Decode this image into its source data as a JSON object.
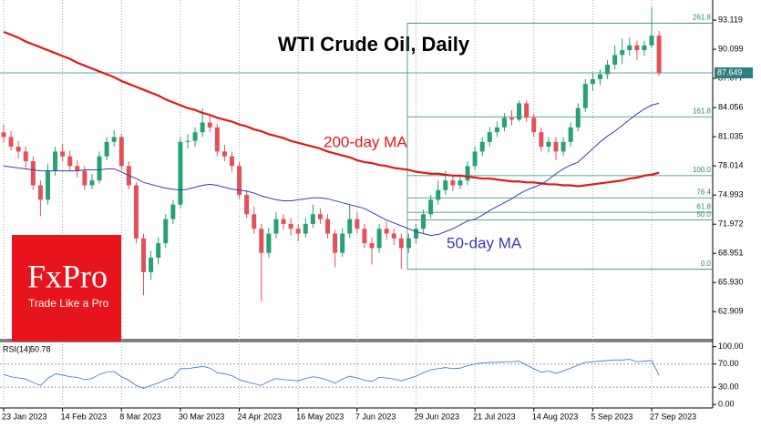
{
  "chart_data": {
    "type": "candlestick",
    "title": "WTI Crude Oil, Daily",
    "categories": [
      "23 Jan 2023",
      null,
      null,
      null,
      null,
      null,
      null,
      null,
      "14 Feb 2023",
      null,
      null,
      null,
      null,
      null,
      null,
      null,
      "8 Mar 2023",
      null,
      null,
      null,
      null,
      null,
      null,
      null,
      "30 Mar 2023",
      null,
      null,
      null,
      null,
      null,
      null,
      null,
      "24 Apr 2023",
      null,
      null,
      null,
      null,
      null,
      null,
      null,
      "16 May 2023",
      null,
      null,
      null,
      null,
      null,
      null,
      null,
      "7 Jun 2023",
      null,
      null,
      null,
      null,
      null,
      null,
      null,
      "29 Jun 2023",
      null,
      null,
      null,
      null,
      null,
      null,
      null,
      "21 Jul 2023",
      null,
      null,
      null,
      null,
      null,
      null,
      null,
      "14 Aug 2023",
      null,
      null,
      null,
      null,
      null,
      null,
      null,
      "5 Sep 2023",
      null,
      null,
      null,
      null,
      null,
      null,
      null,
      "27 Sep 2023",
      null
    ],
    "ohlc": [
      [
        81.5,
        82.3,
        80.4,
        81.0
      ],
      [
        81.0,
        81.6,
        79.6,
        80.0
      ],
      [
        80.0,
        80.6,
        78.8,
        79.5
      ],
      [
        79.5,
        80.0,
        77.8,
        78.5
      ],
      [
        78.5,
        79.0,
        75.5,
        76.0
      ],
      [
        76.0,
        76.5,
        72.8,
        74.5
      ],
      [
        74.5,
        78.2,
        74.0,
        77.5
      ],
      [
        77.5,
        80.0,
        77.0,
        79.5
      ],
      [
        79.5,
        80.3,
        78.5,
        79.0
      ],
      [
        79.0,
        79.6,
        77.4,
        78.0
      ],
      [
        78.0,
        78.6,
        76.8,
        77.5
      ],
      [
        77.5,
        78.0,
        75.5,
        76.0
      ],
      [
        76.0,
        77.2,
        75.6,
        76.5
      ],
      [
        76.5,
        79.5,
        76.2,
        79.0
      ],
      [
        79.0,
        81.0,
        78.6,
        80.5
      ],
      [
        80.5,
        81.7,
        80.0,
        81.0
      ],
      [
        81.0,
        81.3,
        77.6,
        78.0
      ],
      [
        78.0,
        78.5,
        75.6,
        76.0
      ],
      [
        76.0,
        76.3,
        70.0,
        70.5
      ],
      [
        70.5,
        71.0,
        64.6,
        67.0
      ],
      [
        67.0,
        69.2,
        66.2,
        68.5
      ],
      [
        68.5,
        70.6,
        67.8,
        70.0
      ],
      [
        70.0,
        73.0,
        69.5,
        72.5
      ],
      [
        72.5,
        74.5,
        72.0,
        74.0
      ],
      [
        74.0,
        81.0,
        73.6,
        80.5
      ],
      [
        80.5,
        81.3,
        79.8,
        80.6
      ],
      [
        80.6,
        82.0,
        80.0,
        81.5
      ],
      [
        81.5,
        84.0,
        81.0,
        82.5
      ],
      [
        82.5,
        83.2,
        81.5,
        82.0
      ],
      [
        82.0,
        82.4,
        79.0,
        79.5
      ],
      [
        79.5,
        80.2,
        78.5,
        79.0
      ],
      [
        79.0,
        79.5,
        77.4,
        78.0
      ],
      [
        78.0,
        78.4,
        74.6,
        75.0
      ],
      [
        75.0,
        75.5,
        72.6,
        73.0
      ],
      [
        73.0,
        73.8,
        71.0,
        71.5
      ],
      [
        71.5,
        72.0,
        64.0,
        69.0
      ],
      [
        69.0,
        71.6,
        68.5,
        71.0
      ],
      [
        71.0,
        73.2,
        70.5,
        72.5
      ],
      [
        72.5,
        73.0,
        71.4,
        72.0
      ],
      [
        72.0,
        72.6,
        70.8,
        71.5
      ],
      [
        71.5,
        72.0,
        70.2,
        71.0
      ],
      [
        71.0,
        72.6,
        70.6,
        72.0
      ],
      [
        72.0,
        74.0,
        71.6,
        73.0
      ],
      [
        73.0,
        73.6,
        72.0,
        72.5
      ],
      [
        72.5,
        73.0,
        70.5,
        71.0
      ],
      [
        71.0,
        71.4,
        67.5,
        69.0
      ],
      [
        69.0,
        71.6,
        68.6,
        71.0
      ],
      [
        71.0,
        74.0,
        70.5,
        72.5
      ],
      [
        72.5,
        73.2,
        71.0,
        71.5
      ],
      [
        71.5,
        72.0,
        69.5,
        70.0
      ],
      [
        70.0,
        70.6,
        67.8,
        69.5
      ],
      [
        69.5,
        72.0,
        69.0,
        71.5
      ],
      [
        71.5,
        72.2,
        70.4,
        71.0
      ],
      [
        71.0,
        71.5,
        69.8,
        70.5
      ],
      [
        70.5,
        71.0,
        67.3,
        69.5
      ],
      [
        69.5,
        71.0,
        69.0,
        70.5
      ],
      [
        70.5,
        72.0,
        70.0,
        71.5
      ],
      [
        71.5,
        73.5,
        71.0,
        73.0
      ],
      [
        73.0,
        75.0,
        72.6,
        74.5
      ],
      [
        74.5,
        76.5,
        74.0,
        75.5
      ],
      [
        75.5,
        77.5,
        75.0,
        76.5
      ],
      [
        76.5,
        77.0,
        75.4,
        76.0
      ],
      [
        76.0,
        77.0,
        75.6,
        76.5
      ],
      [
        76.5,
        78.5,
        76.0,
        78.0
      ],
      [
        78.0,
        80.0,
        77.6,
        79.5
      ],
      [
        79.5,
        81.0,
        79.0,
        80.5
      ],
      [
        80.5,
        82.0,
        80.0,
        81.5
      ],
      [
        81.5,
        82.6,
        81.0,
        82.0
      ],
      [
        82.0,
        83.5,
        81.6,
        83.0
      ],
      [
        83.0,
        83.8,
        82.2,
        82.8
      ],
      [
        82.8,
        84.8,
        82.6,
        84.5
      ],
      [
        84.5,
        84.8,
        82.6,
        83.0
      ],
      [
        83.0,
        83.4,
        81.0,
        81.5
      ],
      [
        81.5,
        82.0,
        79.5,
        80.0
      ],
      [
        80.0,
        81.0,
        79.4,
        80.5
      ],
      [
        80.5,
        81.0,
        78.6,
        79.5
      ],
      [
        79.5,
        81.0,
        79.0,
        80.5
      ],
      [
        80.5,
        82.5,
        80.0,
        82.0
      ],
      [
        82.0,
        84.5,
        81.6,
        84.0
      ],
      [
        84.0,
        87.0,
        83.6,
        86.5
      ],
      [
        86.5,
        87.6,
        85.8,
        87.0
      ],
      [
        87.0,
        88.0,
        86.4,
        87.5
      ],
      [
        87.5,
        89.0,
        87.0,
        88.5
      ],
      [
        88.5,
        90.5,
        88.0,
        89.5
      ],
      [
        89.5,
        91.2,
        88.6,
        90.0
      ],
      [
        90.0,
        91.3,
        89.4,
        90.5
      ],
      [
        90.5,
        91.0,
        89.0,
        90.0
      ],
      [
        90.0,
        91.0,
        89.4,
        90.5
      ],
      [
        90.5,
        94.5,
        90.2,
        91.5
      ],
      [
        91.5,
        92.0,
        87.3,
        87.6
      ]
    ],
    "up_color": "#26a076",
    "down_color": "#e4505a",
    "ylim": [
      60.1,
      95.2
    ],
    "yticks": [
      93.119,
      90.099,
      87.077,
      84.056,
      81.035,
      78.014,
      74.993,
      71.972,
      68.951,
      {
        "value": 65.93,
        "label": "65.930"
      },
      62.909
    ],
    "series": [
      {
        "name": "200-day MA",
        "color": "#e01818",
        "values": [
          91.9,
          91.6,
          91.3,
          90.9,
          90.6,
          90.3,
          90.0,
          89.7,
          89.4,
          89.1,
          88.7,
          88.4,
          88.1,
          87.8,
          87.5,
          87.2,
          86.8,
          86.5,
          86.2,
          85.9,
          85.6,
          85.3,
          84.9,
          84.6,
          84.3,
          84.0,
          83.8,
          83.5,
          83.3,
          83.0,
          82.8,
          82.6,
          82.3,
          82.1,
          81.8,
          81.6,
          81.3,
          81.1,
          80.9,
          80.6,
          80.4,
          80.2,
          80.0,
          79.8,
          79.5,
          79.3,
          79.1,
          78.9,
          78.6,
          78.4,
          78.3,
          78.1,
          78.0,
          77.8,
          77.7,
          77.6,
          77.4,
          77.3,
          77.2,
          77.2,
          77.1,
          77.0,
          77.0,
          76.9,
          76.8,
          76.7,
          76.7,
          76.6,
          76.5,
          76.4,
          76.4,
          76.3,
          76.3,
          76.2,
          76.1,
          76.1,
          76.0,
          76.0,
          75.9,
          76.0,
          76.1,
          76.2,
          76.3,
          76.4,
          76.5,
          76.7,
          76.8,
          77.0,
          77.1,
          77.3
        ]
      },
      {
        "name": "50-day MA",
        "color": "#3a3ab0",
        "values": [
          78.0,
          77.9,
          77.8,
          77.7,
          77.6,
          77.5,
          77.5,
          77.5,
          77.5,
          77.5,
          77.5,
          77.6,
          77.6,
          77.6,
          77.7,
          77.7,
          77.4,
          77.0,
          76.7,
          76.3,
          76.1,
          75.9,
          75.7,
          75.6,
          75.5,
          75.6,
          75.8,
          76.0,
          76.1,
          76.0,
          75.8,
          75.6,
          75.5,
          75.4,
          75.2,
          74.9,
          74.7,
          74.5,
          74.4,
          74.4,
          74.5,
          74.6,
          74.7,
          74.7,
          74.6,
          74.4,
          74.2,
          74.0,
          73.8,
          73.6,
          73.2,
          72.8,
          72.4,
          72.1,
          71.8,
          71.5,
          71.2,
          71.0,
          70.8,
          70.9,
          71.2,
          71.5,
          71.9,
          72.3,
          72.5,
          72.9,
          73.4,
          73.8,
          74.2,
          74.6,
          75.1,
          75.5,
          75.8,
          76.1,
          76.6,
          77.2,
          77.7,
          78.1,
          78.4,
          79.1,
          79.8,
          80.5,
          81.1,
          81.6,
          82.2,
          82.8,
          83.4,
          83.9,
          84.3,
          84.5
        ]
      }
    ],
    "fibonacci": {
      "color": "#2e8b6a",
      "levels": [
        {
          "label": "261.8",
          "price": 92.8
        },
        {
          "label": "161.8",
          "price": 83.1
        },
        {
          "label": "100.0",
          "price": 77.0
        },
        {
          "label": "76.4",
          "price": 74.7
        },
        {
          "label": "61.8",
          "price": 73.2
        },
        {
          "label": "50.0",
          "price": 72.4
        },
        {
          "label": "0.0",
          "price": 67.3
        }
      ]
    },
    "last_price": 87.649,
    "last_price_color": "#2f7f7f",
    "indicator": {
      "name": "RSI(14)",
      "color": "#2f6fd0",
      "ylim": [
        -6,
        109
      ],
      "yticks": [
        {
          "value": 100,
          "label": "100.00"
        },
        {
          "value": 70,
          "label": "70.00"
        },
        {
          "value": 30,
          "label": "30.00"
        },
        {
          "value": 0,
          "label": "0.00"
        }
      ],
      "values": [
        52,
        48,
        46,
        44,
        38,
        33,
        45,
        53,
        51,
        48,
        47,
        43,
        45,
        52,
        56,
        57,
        48,
        42,
        33,
        28,
        33,
        37,
        43,
        47,
        62,
        62,
        64,
        66,
        63,
        55,
        53,
        50,
        43,
        39,
        36,
        33,
        40,
        45,
        43,
        42,
        41,
        45,
        48,
        46,
        42,
        37,
        44,
        49,
        46,
        42,
        40,
        47,
        46,
        44,
        41,
        45,
        49,
        55,
        60,
        62,
        64,
        62,
        63,
        67,
        70,
        72,
        73,
        73,
        74,
        74,
        75,
        68,
        62,
        56,
        58,
        54,
        58,
        63,
        68,
        73,
        74,
        75,
        76,
        77,
        77,
        78,
        74,
        75,
        76,
        50.78
      ]
    },
    "brand": {
      "name": "FxPro",
      "tagline": "Trade Like a Pro",
      "color": "#e8141b"
    }
  }
}
